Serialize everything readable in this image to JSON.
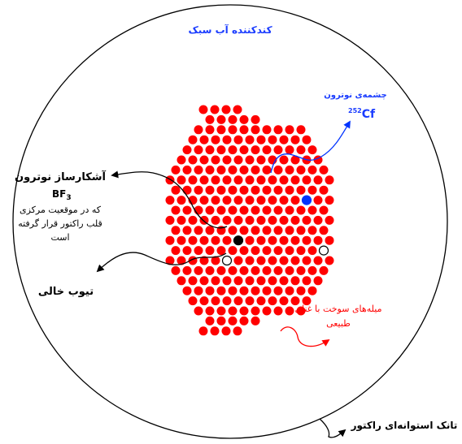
{
  "moderator_label": "کندکننده آب سبک",
  "source": {
    "label": "چشمه‌ی نوترون",
    "isotope_mass": "252",
    "isotope_symbol": "Cf"
  },
  "detector": {
    "title": "آشکارساز نوترون",
    "type_main": "BF",
    "type_sub": "3",
    "desc_line1": "که در موقعیت مرکزی",
    "desc_line2": "قلب راکتور قرار گرفته",
    "desc_line3": "است"
  },
  "empty_tube_label": "تیوب خالی",
  "fuel": {
    "label_line1": "میله‌های سوخت با غنای",
    "label_line2": "طبیعی"
  },
  "tank_label": "تانک استوانه‌ای راکتور",
  "colors": {
    "fuel_rod": "#ff0000",
    "source_rod": "#0033ff",
    "detector_rod": "#000000",
    "moderator_text": "#1a3cff",
    "source_text": "#1a3cff",
    "fuel_text": "#ff0000",
    "outline": "#000000"
  }
}
